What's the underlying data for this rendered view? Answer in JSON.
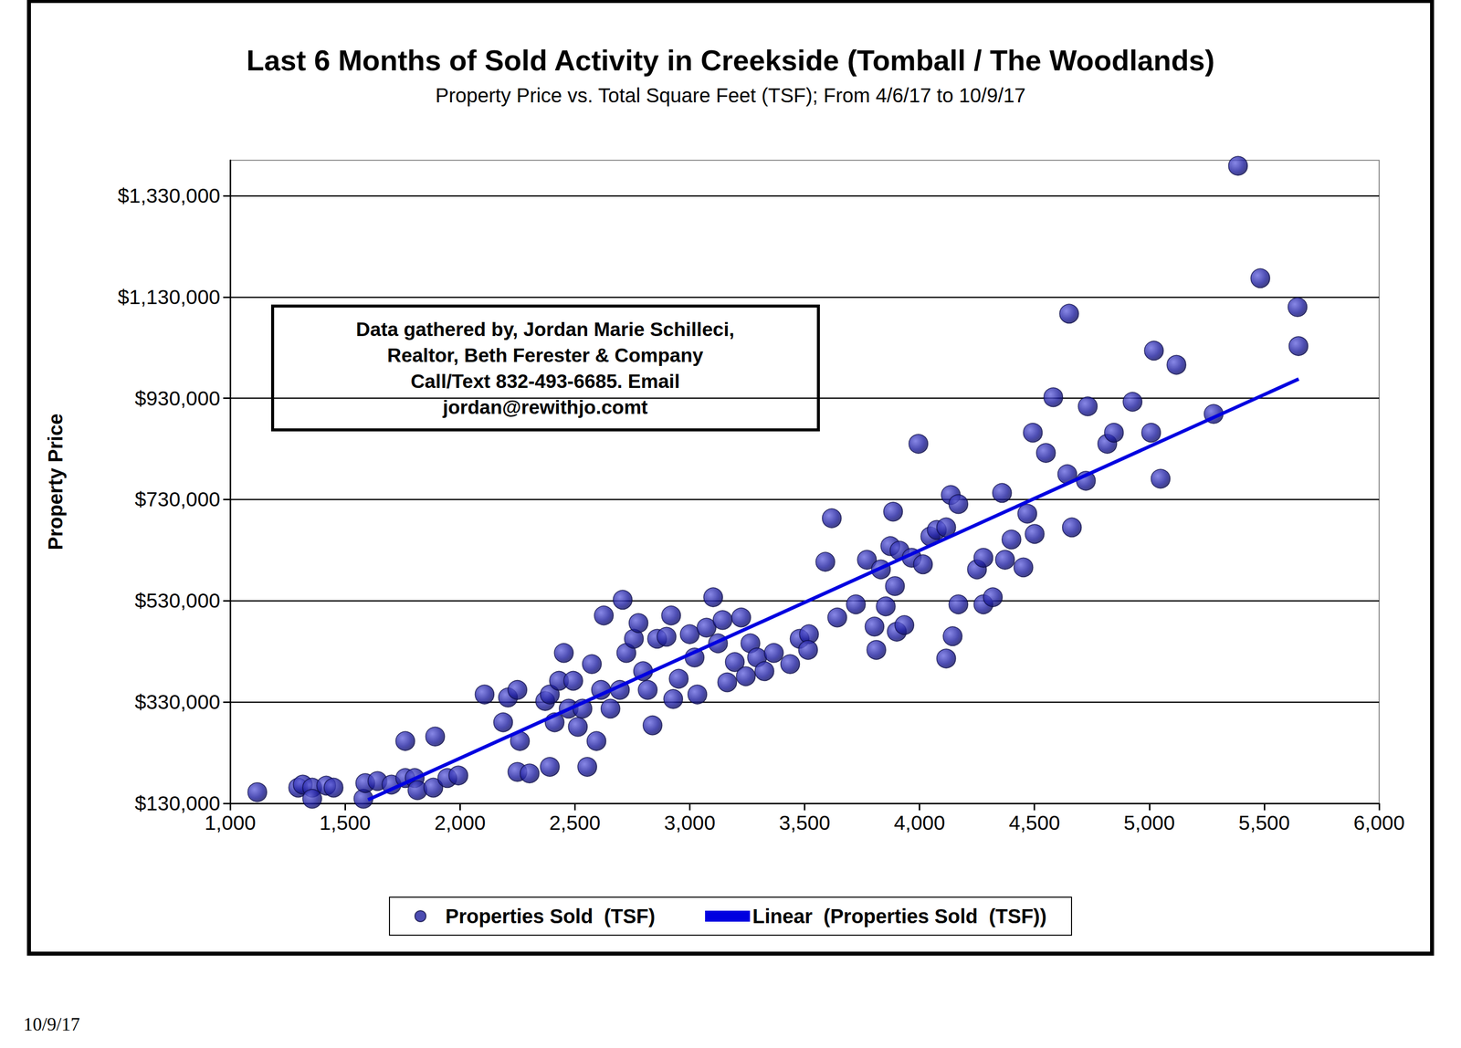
{
  "chart_data": {
    "type": "scatter",
    "title": "Last 6 Months of Sold Activity in Creekside (Tomball / The Woodlands)",
    "subtitle": "Property Price vs. Total Square Feet (TSF); From 4/6/17 to 10/9/17",
    "ylabel": "Property Price",
    "annotation": [
      "Data gathered by, Jordan Marie Schilleci,",
      "Realtor, Beth Ferester & Company",
      "Call/Text 832-493-6685. Email",
      "jordan@rewithjo.comt"
    ],
    "footer": "10/9/17",
    "xlim": [
      1000,
      6000
    ],
    "xticks": [
      {
        "value": 1000,
        "label": "1,000"
      },
      {
        "value": 1500,
        "label": "1,500"
      },
      {
        "value": 2000,
        "label": "2,000"
      },
      {
        "value": 2500,
        "label": "2,500"
      },
      {
        "value": 3000,
        "label": "3,000"
      },
      {
        "value": 3500,
        "label": "3,500"
      },
      {
        "value": 4000,
        "label": "4,000"
      },
      {
        "value": 4500,
        "label": "4,500"
      },
      {
        "value": 5000,
        "label": "5,000"
      },
      {
        "value": 5500,
        "label": "5,500"
      },
      {
        "value": 6000,
        "label": "6,000"
      }
    ],
    "ylim": [
      130000,
      1400000
    ],
    "yticks": [
      {
        "value": 130000,
        "label": "$130,000"
      },
      {
        "value": 330000,
        "label": "$330,000"
      },
      {
        "value": 530000,
        "label": "$530,000"
      },
      {
        "value": 730000,
        "label": "$730,000"
      },
      {
        "value": 930000,
        "label": "$930,000"
      },
      {
        "value": 1130000,
        "label": "$1,130,000"
      },
      {
        "value": 1330000,
        "label": "$1,330,000"
      }
    ],
    "grid": true,
    "legend": "bottom",
    "series": [
      {
        "name": "Properties Sold  (TSF)",
        "type": "scatter",
        "color": "#1f1f9e",
        "marker": "circle",
        "x": [
          1118,
          1296,
          1316,
          1357,
          1357,
          1418,
          1450,
          1580,
          1588,
          1641,
          1702,
          1762,
          1762,
          1803,
          1815,
          1892,
          1884,
          1945,
          1993,
          2107,
          2209,
          2188,
          2250,
          2261,
          2250,
          2303,
          2391,
          2371,
          2391,
          2412,
          2431,
          2452,
          2473,
          2493,
          2513,
          2533,
          2554,
          2574,
          2594,
          2626,
          2614,
          2655,
          2696,
          2708,
          2724,
          2757,
          2777,
          2797,
          2817,
          2838,
          2858,
          2899,
          2919,
          2928,
          2952,
          3000,
          3021,
          3033,
          3073,
          3102,
          3123,
          3143,
          3163,
          3196,
          3224,
          3244,
          3264,
          3293,
          3325,
          3366,
          3437,
          3478,
          3519,
          3515,
          3590,
          3618,
          3642,
          3723,
          3771,
          3804,
          3812,
          3832,
          3853,
          3873,
          3885,
          3893,
          3901,
          3913,
          3934,
          3966,
          3995,
          4015,
          4047,
          4075,
          4116,
          4116,
          4136,
          4144,
          4169,
          4169,
          4250,
          4278,
          4278,
          4319,
          4359,
          4372,
          4400,
          4452,
          4469,
          4493,
          4501,
          4550,
          4582,
          4643,
          4651,
          4663,
          4724,
          4732,
          4817,
          4846,
          4927,
          5008,
          5020,
          5049,
          5118,
          5280,
          5386,
          5483,
          5645,
          5649
        ],
        "values": [
          152000,
          161000,
          167000,
          161000,
          139000,
          165000,
          161000,
          139000,
          170000,
          174000,
          167000,
          180000,
          253000,
          180000,
          156000,
          262000,
          161000,
          180000,
          185000,
          345000,
          339000,
          290000,
          354000,
          253000,
          192000,
          189000,
          202000,
          332000,
          345000,
          290000,
          372000,
          427000,
          317000,
          372000,
          281000,
          317000,
          202000,
          405000,
          253000,
          501000,
          354000,
          317000,
          354000,
          532000,
          427000,
          455000,
          486000,
          391000,
          354000,
          284000,
          455000,
          459000,
          501000,
          336000,
          376000,
          464000,
          418000,
          345000,
          477000,
          537000,
          446000,
          492000,
          369000,
          409000,
          497000,
          381000,
          446000,
          418000,
          391000,
          427000,
          405000,
          455000,
          464000,
          433000,
          607000,
          693000,
          497000,
          523000,
          611000,
          479000,
          433000,
          592000,
          519000,
          638000,
          706000,
          559000,
          469000,
          629000,
          482000,
          615000,
          840000,
          602000,
          657000,
          670000,
          675000,
          416000,
          739000,
          460000,
          721000,
          523000,
          592000,
          615000,
          523000,
          537000,
          743000,
          611000,
          651000,
          596000,
          702000,
          862000,
          662000,
          822000,
          932000,
          780000,
          1097000,
          675000,
          767000,
          914000,
          840000,
          862000,
          923000,
          862000,
          1024000,
          771000,
          996000,
          899000,
          1389000,
          1167000,
          1110000,
          1033000
        ]
      },
      {
        "name": "Linear  (Properties Sold  (TSF))",
        "type": "line",
        "color": "#0000e0",
        "line_style": "solid",
        "x": [
          1600,
          5650
        ],
        "values": [
          137000,
          968000
        ]
      }
    ]
  }
}
